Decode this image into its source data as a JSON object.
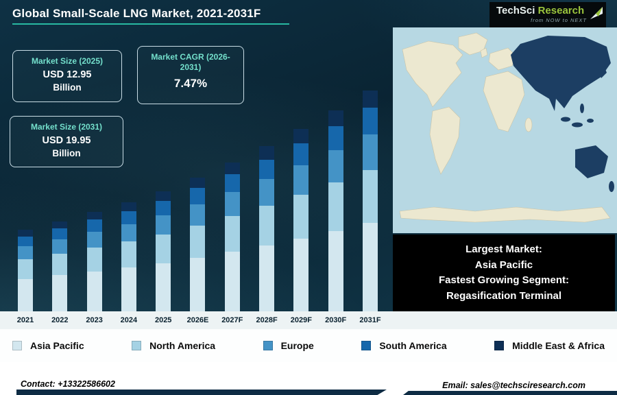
{
  "header": {
    "title": "Global Small-Scale LNG Market, 2021-2031F",
    "logo": {
      "primary": "TechSci",
      "secondary": "Research",
      "tagline": "from NOW to NEXT"
    }
  },
  "info_boxes": {
    "size_2025": {
      "label": "Market Size (2025)",
      "value": "USD 12.95",
      "unit": "Billion"
    },
    "cagr": {
      "label": "Market CAGR (2026-2031)",
      "value": "7.47%"
    },
    "size_2031": {
      "label": "Market Size (2031)",
      "value": "USD 19.95",
      "unit": "Billion"
    }
  },
  "map_callout": {
    "line1": "Largest Market:",
    "line2": "Asia Pacific",
    "line3": "Fastest Growing Segment:",
    "line4": "Regasification Terminal"
  },
  "chart_data": {
    "type": "bar",
    "stacked": true,
    "title": "Global Small-Scale LNG Market, 2021-2031F",
    "unit": "USD Billion",
    "categories": [
      "2021",
      "2022",
      "2023",
      "2024",
      "2025",
      "2026E",
      "2027F",
      "2028F",
      "2029F",
      "2030F",
      "2031F"
    ],
    "series": [
      {
        "name": "Asia Pacific",
        "color": "#d3e7ef",
        "values": [
          4.12,
          4.36,
          4.62,
          4.88,
          5.18,
          5.57,
          5.98,
          6.43,
          6.91,
          7.43,
          7.98
        ]
      },
      {
        "name": "North America",
        "color": "#a5d2e4",
        "values": [
          2.47,
          2.62,
          2.77,
          2.93,
          3.11,
          3.34,
          3.59,
          3.86,
          4.15,
          4.46,
          4.79
        ]
      },
      {
        "name": "Europe",
        "color": "#4493c6",
        "values": [
          1.65,
          1.74,
          1.85,
          1.95,
          2.07,
          2.23,
          2.39,
          2.57,
          2.76,
          2.97,
          3.19
        ]
      },
      {
        "name": "South America",
        "color": "#1667ab",
        "values": [
          1.24,
          1.31,
          1.39,
          1.46,
          1.55,
          1.67,
          1.8,
          1.93,
          2.07,
          2.23,
          2.39
        ]
      },
      {
        "name": "Middle East & Africa",
        "color": "#0d2f55",
        "values": [
          0.82,
          0.87,
          0.92,
          0.98,
          1.04,
          1.11,
          1.2,
          1.29,
          1.38,
          1.49,
          1.6
        ]
      }
    ],
    "totals": [
      10.3,
      10.9,
      11.55,
      12.2,
      12.95,
      13.92,
      14.96,
      16.08,
      17.27,
      18.58,
      19.95
    ],
    "legend_position": "bottom",
    "grid": false
  },
  "footer": {
    "contact": "Contact: +13322586602",
    "email": "Email: sales@techsciresearch.com"
  },
  "colors": {
    "background_navy": "#0b2a3c",
    "accent_teal": "#28b9a2",
    "callout_bg": "#000000",
    "map_ocean": "#b7d8e3",
    "map_land": "#ece8d0",
    "map_highlight": "#1c3e63"
  }
}
